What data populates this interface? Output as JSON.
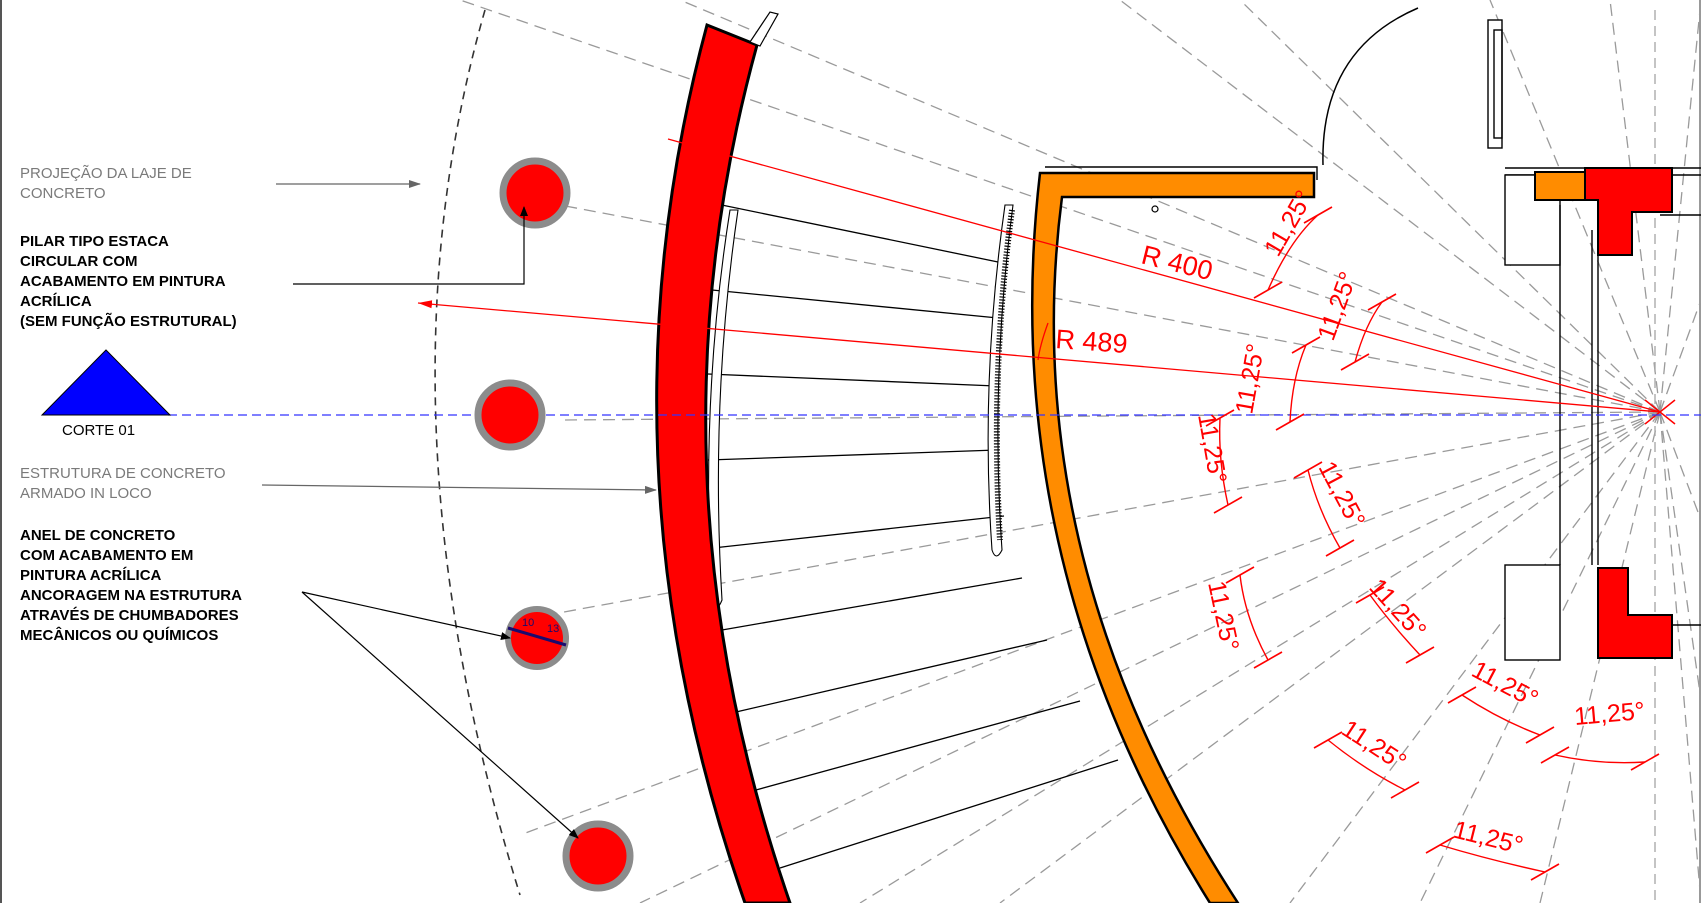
{
  "labels": {
    "slab_projection": [
      "PROJEÇÃO DA LAJE DE",
      "CONCRETO"
    ],
    "pillar": [
      "PILAR TIPO ESTACA",
      "CIRCULAR COM",
      "ACABAMENTO EM PINTURA",
      "ACRÍLICA",
      "(SEM FUNÇÃO ESTRUTURAL)"
    ],
    "section_mark": "CORTE 01",
    "structure": [
      "ESTRUTURA DE CONCRETO",
      "ARMADO IN LOCO"
    ],
    "ring": [
      "ANEL DE CONCRETO",
      "COM ACABAMENTO EM",
      "PINTURA ACRÍLICA",
      "ANCORAGEM NA ESTRUTURA",
      "ATRAVÉS DE CHUMBADORES",
      "MECÂNICOS OU QUÍMICOS"
    ]
  },
  "dimensions": {
    "radius_inner": "R 400",
    "radius_outer": "R 489",
    "angle": "11,25°",
    "ring_detail": [
      "10",
      "13"
    ]
  },
  "colors": {
    "structure": "#ff0000",
    "ring_beam": "#ff8c00",
    "pillar_border": "#8c8c8c",
    "section_triangle": "#0000ff",
    "dimension": "#ff0000",
    "construction_line": "#999999"
  }
}
